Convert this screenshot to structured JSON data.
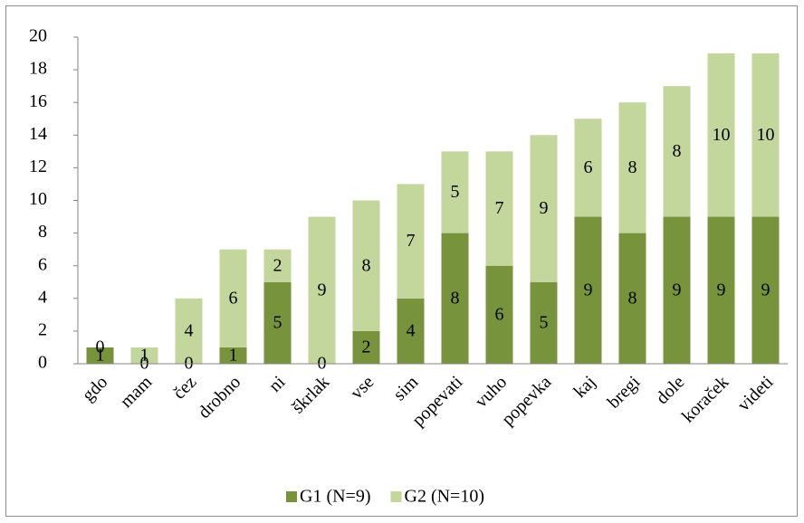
{
  "chart_data": {
    "type": "stacked-bar",
    "categories": [
      "gdo",
      "mam",
      "čez",
      "drobno",
      "ni",
      "škrlak",
      "vse",
      "sim",
      "popevati",
      "vuho",
      "popevka",
      "kaj",
      "bregi",
      "dole",
      "koraček",
      "videti"
    ],
    "series": [
      {
        "name": "G1 (N=9)",
        "color": "#77933c",
        "values": [
          1,
          0,
          0,
          1,
          5,
          0,
          2,
          4,
          8,
          6,
          5,
          9,
          8,
          9,
          9,
          9
        ]
      },
      {
        "name": "G2 (N=10)",
        "color": "#c3d69b",
        "values": [
          0,
          1,
          4,
          6,
          2,
          9,
          8,
          7,
          5,
          7,
          9,
          6,
          8,
          8,
          10,
          10
        ]
      }
    ],
    "ylim": [
      0,
      20
    ],
    "yticks": [
      0,
      2,
      4,
      6,
      8,
      10,
      12,
      14,
      16,
      18,
      20
    ],
    "grid": false,
    "legend": "bottom"
  }
}
